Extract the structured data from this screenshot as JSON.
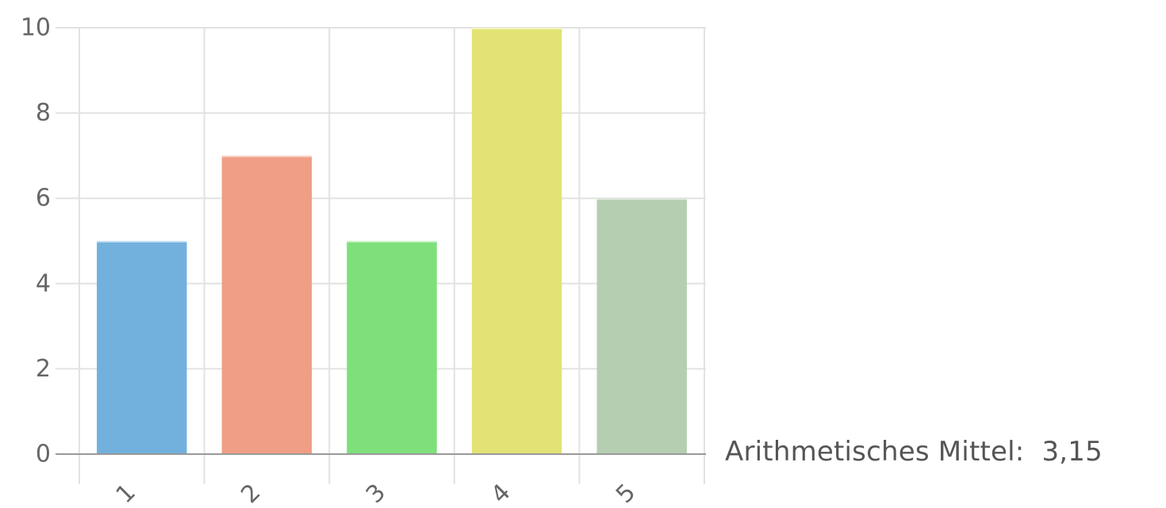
{
  "chart_data": {
    "type": "bar",
    "categories": [
      "1",
      "2",
      "3",
      "4",
      "5"
    ],
    "values": [
      5,
      7,
      5,
      10,
      6
    ],
    "ylim": [
      0,
      10
    ],
    "yticks": [
      "0",
      "2",
      "4",
      "6",
      "8",
      "10"
    ],
    "grid": true,
    "colors": [
      "#72b1dd",
      "#f09e85",
      "#7ee07b",
      "#e2e374",
      "#b5ceb1"
    ],
    "title": "",
    "xlabel": "",
    "ylabel": ""
  },
  "summary": {
    "mean_label": "Arithmetisches Mittel:",
    "mean_value": "3,15"
  }
}
